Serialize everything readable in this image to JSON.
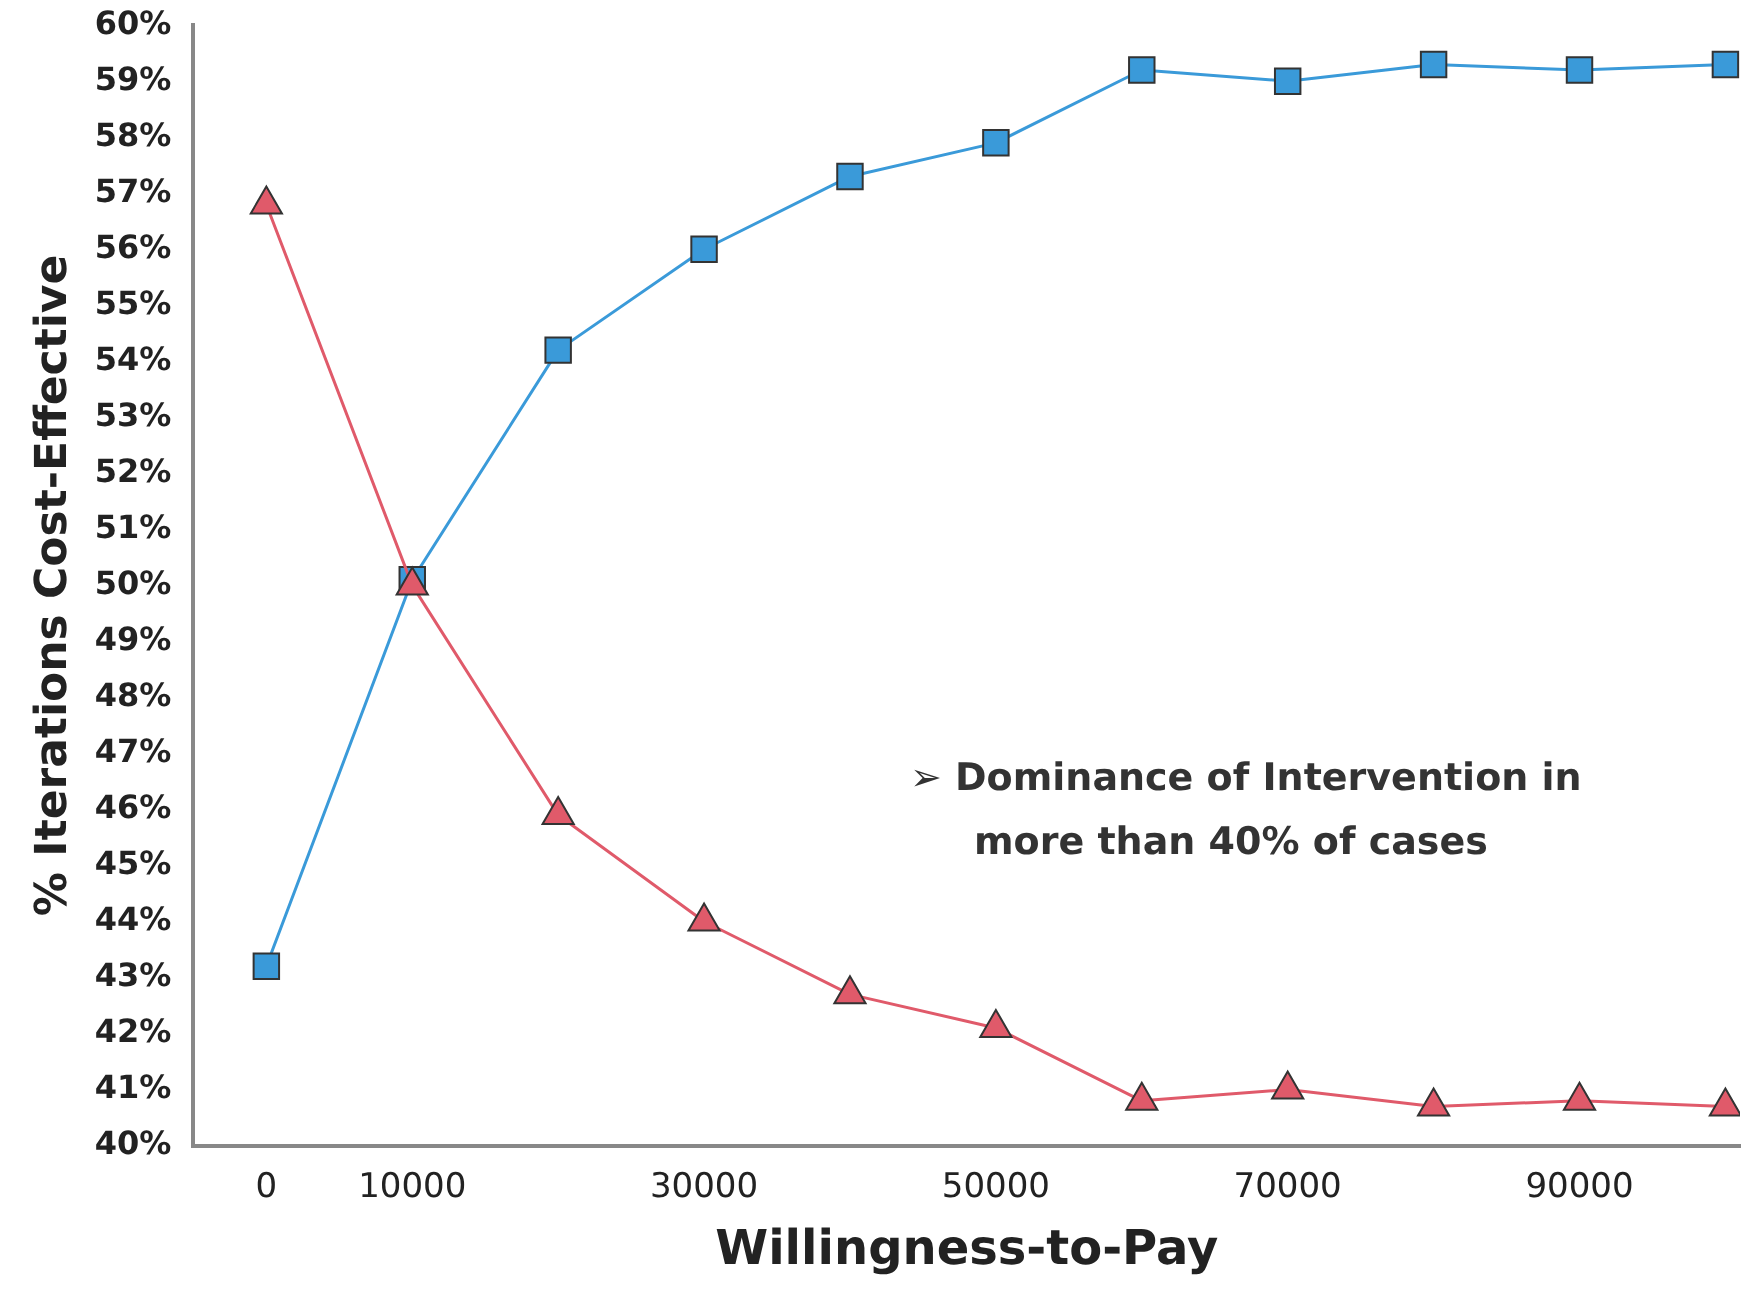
{
  "chart_data": {
    "type": "line",
    "xlabel": "Willingness-to-Pay",
    "ylabel": "% Iterations Cost-Effective",
    "x": [
      0,
      10000,
      20000,
      30000,
      40000,
      50000,
      60000,
      70000,
      80000,
      90000,
      100000
    ],
    "series": [
      {
        "color": "#3a9ad9",
        "marker": "square",
        "values": [
          43.2,
          50.1,
          54.2,
          56.0,
          57.3,
          57.9,
          59.2,
          59.0,
          59.3,
          59.2,
          59.3
        ]
      },
      {
        "color": "#e05a6a",
        "marker": "triangle",
        "values": [
          56.8,
          50.0,
          45.9,
          44.0,
          42.7,
          42.1,
          40.8,
          41.0,
          40.7,
          40.8,
          40.7
        ]
      }
    ],
    "xlim": [
      -5000,
      101000
    ],
    "xticks": [
      0,
      10000,
      30000,
      50000,
      70000,
      90000
    ],
    "ylim": [
      40,
      60
    ],
    "yticks": [
      {
        "value": 40,
        "label": "40%"
      },
      {
        "value": 41,
        "label": "41%"
      },
      {
        "value": 42,
        "label": "42%"
      },
      {
        "value": 43,
        "label": "43%"
      },
      {
        "value": 44,
        "label": "44%"
      },
      {
        "value": 45,
        "label": "45%"
      },
      {
        "value": 46,
        "label": "46%"
      },
      {
        "value": 47,
        "label": "47%"
      },
      {
        "value": 48,
        "label": "48%"
      },
      {
        "value": 49,
        "label": "49%"
      },
      {
        "value": 50,
        "label": "50%"
      },
      {
        "value": 51,
        "label": "51%"
      },
      {
        "value": 52,
        "label": "52%"
      },
      {
        "value": 53,
        "label": "53%"
      },
      {
        "value": 54,
        "label": "54%"
      },
      {
        "value": 55,
        "label": "55%"
      },
      {
        "value": 56,
        "label": "56%"
      },
      {
        "value": 57,
        "label": "57%"
      },
      {
        "value": 58,
        "label": "58%"
      },
      {
        "value": 59,
        "label": "59%"
      },
      {
        "value": 60,
        "label": "60%"
      }
    ],
    "grid": false,
    "legend": false,
    "annotations": [
      "➢ Dominance of Intervention in\nmore than 40% of cases"
    ]
  }
}
